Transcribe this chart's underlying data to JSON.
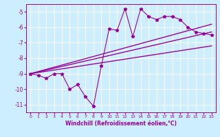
{
  "xlabel": "Windchill (Refroidissement éolien,°C)",
  "ylabel": "",
  "bg_color": "#cceeff",
  "line_color": "#990099",
  "grid_color": "#ffffff",
  "xlim": [
    -0.5,
    23.5
  ],
  "ylim": [
    -11.5,
    -4.5
  ],
  "yticks": [
    -11,
    -10,
    -9,
    -8,
    -7,
    -6,
    -5
  ],
  "xticks": [
    0,
    1,
    2,
    3,
    4,
    5,
    6,
    7,
    8,
    9,
    10,
    11,
    12,
    13,
    14,
    15,
    16,
    17,
    18,
    19,
    20,
    21,
    22,
    23
  ],
  "series1_x": [
    0,
    1,
    2,
    3,
    4,
    5,
    6,
    7,
    8,
    9,
    10,
    11,
    12,
    13,
    14,
    15,
    16,
    17,
    18,
    19,
    20,
    21,
    22,
    23
  ],
  "series1_y": [
    -9.0,
    -9.1,
    -9.3,
    -9.0,
    -9.0,
    -10.0,
    -9.7,
    -10.5,
    -11.1,
    -8.5,
    -6.1,
    -6.2,
    -4.8,
    -6.6,
    -4.8,
    -5.3,
    -5.5,
    -5.3,
    -5.3,
    -5.5,
    -6.0,
    -6.3,
    -6.4,
    -6.5
  ],
  "series2_x": [
    0,
    23
  ],
  "series2_y": [
    -9.0,
    -5.8
  ],
  "series3_x": [
    0,
    23
  ],
  "series3_y": [
    -9.0,
    -6.3
  ],
  "series4_x": [
    0,
    23
  ],
  "series4_y": [
    -9.0,
    -7.2
  ]
}
